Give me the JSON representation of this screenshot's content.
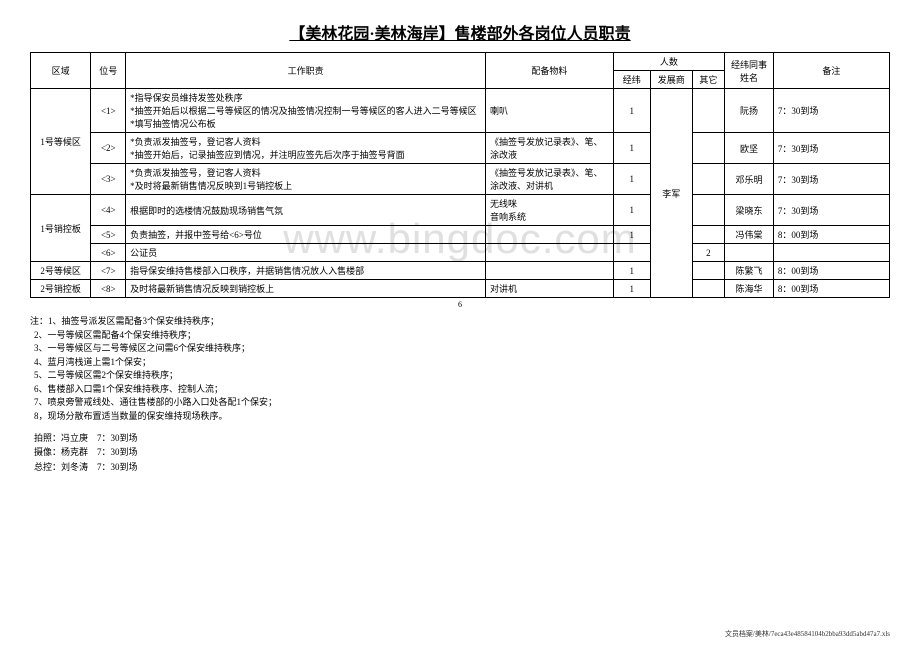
{
  "title": "【美林花园·美林海岸】售楼部外各岗位人员职责",
  "headers": {
    "area": "区域",
    "pos": "位号",
    "duty": "工作职责",
    "mat": "配备物料",
    "people": "人数",
    "p1": "经纬",
    "p2": "发展商",
    "p3": "其它",
    "name": "经纬同事姓名",
    "note": "备注"
  },
  "areas": [
    {
      "area": "1号等候区",
      "rows": [
        {
          "pos": "<1>",
          "duty": "*指导保安员维持发签处秩序\n*抽签开始后以根据二号等候区的情况及抽签情况控制一号等候区的客人进入二号等候区\n*填写抽签情况公布板",
          "mat": "喇叭",
          "p1": "1",
          "name": "阮扬",
          "note": "7：30到场"
        },
        {
          "pos": "<2>",
          "duty": "*负责派发抽签号，登记客人资料\n*抽签开始后，记录抽签应到情况，并注明应签先后次序于抽签号背面",
          "mat": "《抽签号发放记录表》、笔、涂改液",
          "p1": "1",
          "name": "欧坚",
          "note": "7：30到场"
        },
        {
          "pos": "<3>",
          "duty": "*负责派发抽签号，登记客人资料\n*及时将最新销售情况反映到1号销控板上",
          "mat": "《抽签号发放记录表》、笔、涂改液、对讲机",
          "p1": "1",
          "name": "邓乐明",
          "note": "7：30到场"
        }
      ]
    },
    {
      "area": "1号销控板",
      "rows": [
        {
          "pos": "<4>",
          "duty": "根据即时的选楼情况鼓励现场销售气氛",
          "mat": "无线咪\n音响系统",
          "p1": "1",
          "name": "梁晓东",
          "note": "7：30到场"
        },
        {
          "pos": "<5>",
          "duty": "负责抽签，并报中签号给<6>号位",
          "mat": "",
          "p1": "1",
          "name": "冯伟棠",
          "note": "8：00到场"
        },
        {
          "pos": "<6>",
          "duty": "公证员",
          "mat": "",
          "p1": "",
          "p3": "2",
          "name": "",
          "note": ""
        }
      ]
    },
    {
      "area": "2号等候区",
      "rows": [
        {
          "pos": "<7>",
          "duty": "指导保安维持售楼部入口秩序，并据销售情况放人入售楼部",
          "mat": "",
          "p1": "1",
          "name": "陈繁飞",
          "note": "8：00到场"
        }
      ]
    },
    {
      "area": "2号销控板",
      "rows": [
        {
          "pos": "<8>",
          "duty": "及时将最新销售情况反映到销控板上",
          "mat": "对讲机",
          "p1": "1",
          "name": "陈海华",
          "note": "8：00到场"
        }
      ]
    }
  ],
  "dev_name": "李军",
  "pagenum": "6",
  "notes_head": "注：",
  "notes": [
    "1、抽签号派发区需配备3个保安维持秩序；",
    "2、一号等候区需配备4个保安维持秩序；",
    "3、一号等候区与二号等候区之间需6个保安维持秩序；",
    "4、蓝月湾栈道上需1个保安；",
    "5、二号等候区需2个保安维持秩序；",
    "6、售楼部入口需1个保安维持秩序、控制人流；",
    "7、喷泉旁警戒线处、通往售楼部的小路入口处各配1个保安；",
    "8，现场分散布置适当数量的保安维持现场秩序。"
  ],
  "assign": [
    "拍照：冯立庚　7：30到场",
    "摄像：杨克群　7：30到场",
    "总控：刘冬涛　7：30到场"
  ],
  "footer": "文员档案/美林/7eca43e48584104b2bba93dd5abd47a7.xls"
}
